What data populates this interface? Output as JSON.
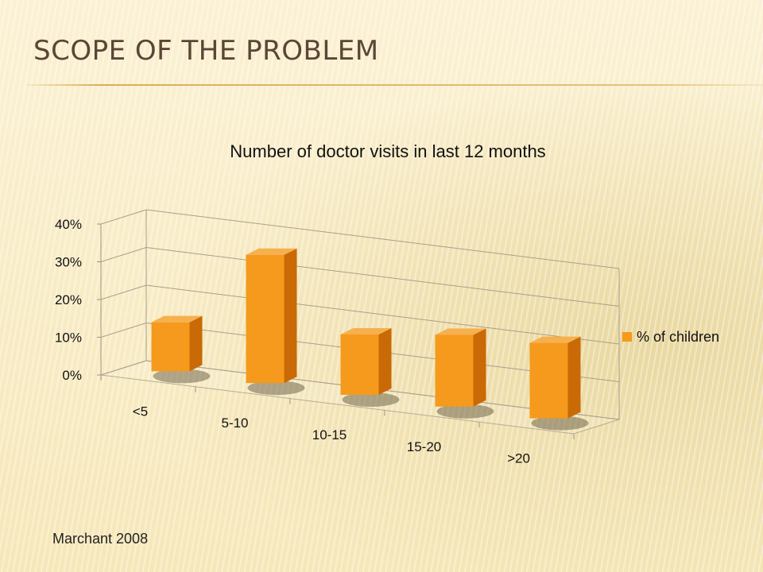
{
  "slide": {
    "title": "SCOPE OF THE PROBLEM",
    "source": "Marchant 2008"
  },
  "colors": {
    "bar_front": "#f59a1c",
    "bar_side": "#c96a06",
    "bar_top": "#f7b04e",
    "title_text": "#5a4636",
    "rule": "#d9ae5a"
  },
  "chart_data": {
    "type": "bar",
    "title": "Number of doctor visits in last 12 months",
    "categories": [
      "<5",
      "5-10",
      "10-15",
      "15-20",
      ">20"
    ],
    "series": [
      {
        "name": "% of children",
        "values": [
          13,
          34,
          16,
          19,
          20
        ]
      }
    ],
    "ylim": [
      0,
      40
    ],
    "yticks": [
      "0%",
      "10%",
      "20%",
      "30%",
      "40%"
    ],
    "grid": true,
    "legend": "right",
    "style": "3d"
  }
}
